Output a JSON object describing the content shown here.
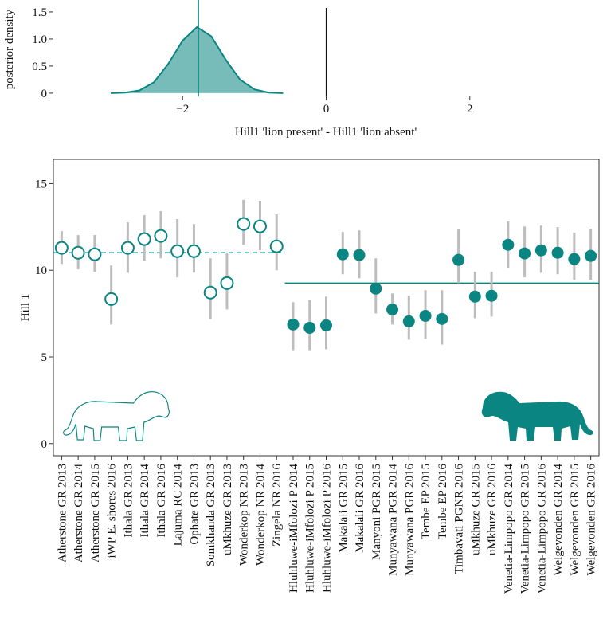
{
  "chart_data": [
    {
      "type": "density",
      "x_label": "Hill1 'lion present' - Hill1 'lion absent'",
      "y_label": "posterior density",
      "x": [
        -3.0,
        -2.8,
        -2.6,
        -2.4,
        -2.2,
        -2.0,
        -1.8,
        -1.6,
        -1.4,
        -1.2,
        -1.0,
        -0.8,
        -0.6
      ],
      "density": [
        0.0,
        0.01,
        0.05,
        0.2,
        0.54,
        0.97,
        1.22,
        1.05,
        0.62,
        0.25,
        0.07,
        0.01,
        0.0
      ],
      "mean": -1.78,
      "reference_x": 0,
      "color": "#0a8582",
      "xlim": [
        -3.8,
        3.8
      ],
      "ylim": [
        -0.06,
        1.72
      ],
      "xticks": [
        {
          "value": -2,
          "label": "−2"
        },
        0,
        2
      ],
      "yticks": [
        0,
        0.5,
        {
          "value": 1,
          "label": "1.0"
        },
        1.5
      ]
    },
    {
      "type": "pointrange",
      "y_label": "Hill 1",
      "categories": [
        "Atherstone GR 2013",
        "Atherstone GR 2014",
        "Atherstone GR 2015",
        "iWP E. shores 2016",
        "Ithala GR 2013",
        "Ithala GR 2014",
        "Ithala GR 2016",
        "Lajuma RC 2014",
        "Ophate GR 2013",
        "Somkhanda GR 2013",
        "uMkhuze GR 2013",
        "Wonderkop NR 2013",
        "Wonderkop NR 2014",
        "Zingela NR 2016",
        "Hluhluwe-iMfolozi P 2014",
        "Hluhluwe-iMfolozi P 2015",
        "Hluhluwe-iMfolozi P 2016",
        "Makalali GR 2015",
        "Makalali GR 2016",
        "Manyoni PGR 2015",
        "Munyawana PGR 2014",
        "Munyawana PGR 2016",
        "Tembe EP 2015",
        "Tembe EP 2016",
        "Timbavati PGNR 2016",
        "uMkhuze GR 2015",
        "uMkhuze GR 2016",
        "Venetia-Limpopo GR 2014",
        "Venetia-Limpopo GR 2015",
        "Venetia-Limpopo GR 2016",
        "Welgevonden GR 2014",
        "Welgevonden GR 2015",
        "Welgevonden GR 2016"
      ],
      "series": [
        {
          "color": "#0a8582",
          "filled": false,
          "mean": 11.01,
          "line": "dashed",
          "values": [
            11.29,
            11.01,
            10.92,
            8.34,
            11.29,
            11.8,
            11.98,
            11.1,
            11.1,
            8.71,
            9.26,
            12.67,
            12.53,
            11.38,
            null,
            null,
            null,
            null,
            null,
            null,
            null,
            null,
            null,
            null,
            null,
            null,
            null,
            null,
            null,
            null,
            null,
            null,
            null
          ],
          "lower": [
            10.37,
            10.05,
            9.91,
            6.87,
            9.86,
            10.55,
            10.69,
            9.59,
            9.86,
            7.19,
            7.74,
            11.47,
            11.15,
            10.0,
            null,
            null,
            null,
            null,
            null,
            null,
            null,
            null,
            null,
            null,
            null,
            null,
            null,
            null,
            null,
            null,
            null,
            null,
            null
          ],
          "upper": [
            12.26,
            12.03,
            12.03,
            10.28,
            12.76,
            13.18,
            13.41,
            12.95,
            12.67,
            10.69,
            11.01,
            14.06,
            14.01,
            13.23,
            null,
            null,
            null,
            null,
            null,
            null,
            null,
            null,
            null,
            null,
            null,
            null,
            null,
            null,
            null,
            null,
            null,
            null,
            null
          ]
        },
        {
          "color": "#0a8582",
          "filled": true,
          "mean": 9.26,
          "line": "solid",
          "values": [
            null,
            null,
            null,
            null,
            null,
            null,
            null,
            null,
            null,
            null,
            null,
            null,
            null,
            null,
            6.87,
            6.68,
            6.82,
            10.92,
            10.88,
            8.94,
            7.74,
            7.05,
            7.37,
            7.19,
            10.6,
            8.48,
            8.53,
            11.47,
            10.97,
            11.15,
            11.01,
            10.65,
            10.83
          ],
          "lower": [
            null,
            null,
            null,
            null,
            null,
            null,
            null,
            null,
            null,
            null,
            null,
            null,
            null,
            null,
            5.39,
            5.39,
            5.44,
            9.77,
            9.54,
            7.51,
            6.87,
            5.99,
            6.04,
            5.71,
            9.26,
            7.23,
            7.33,
            10.14,
            9.59,
            9.86,
            9.77,
            9.45,
            9.45
          ],
          "upper": [
            null,
            null,
            null,
            null,
            null,
            null,
            null,
            null,
            null,
            null,
            null,
            null,
            null,
            null,
            8.16,
            8.29,
            8.48,
            12.21,
            12.3,
            10.69,
            8.66,
            8.53,
            8.85,
            8.85,
            12.35,
            9.91,
            9.91,
            12.81,
            12.53,
            12.58,
            12.49,
            12.17,
            12.4
          ]
        }
      ],
      "error_color": "#bdbdbd",
      "ylim": [
        -0.7,
        16.4
      ],
      "yticks": [
        0,
        5,
        10,
        15
      ]
    }
  ]
}
